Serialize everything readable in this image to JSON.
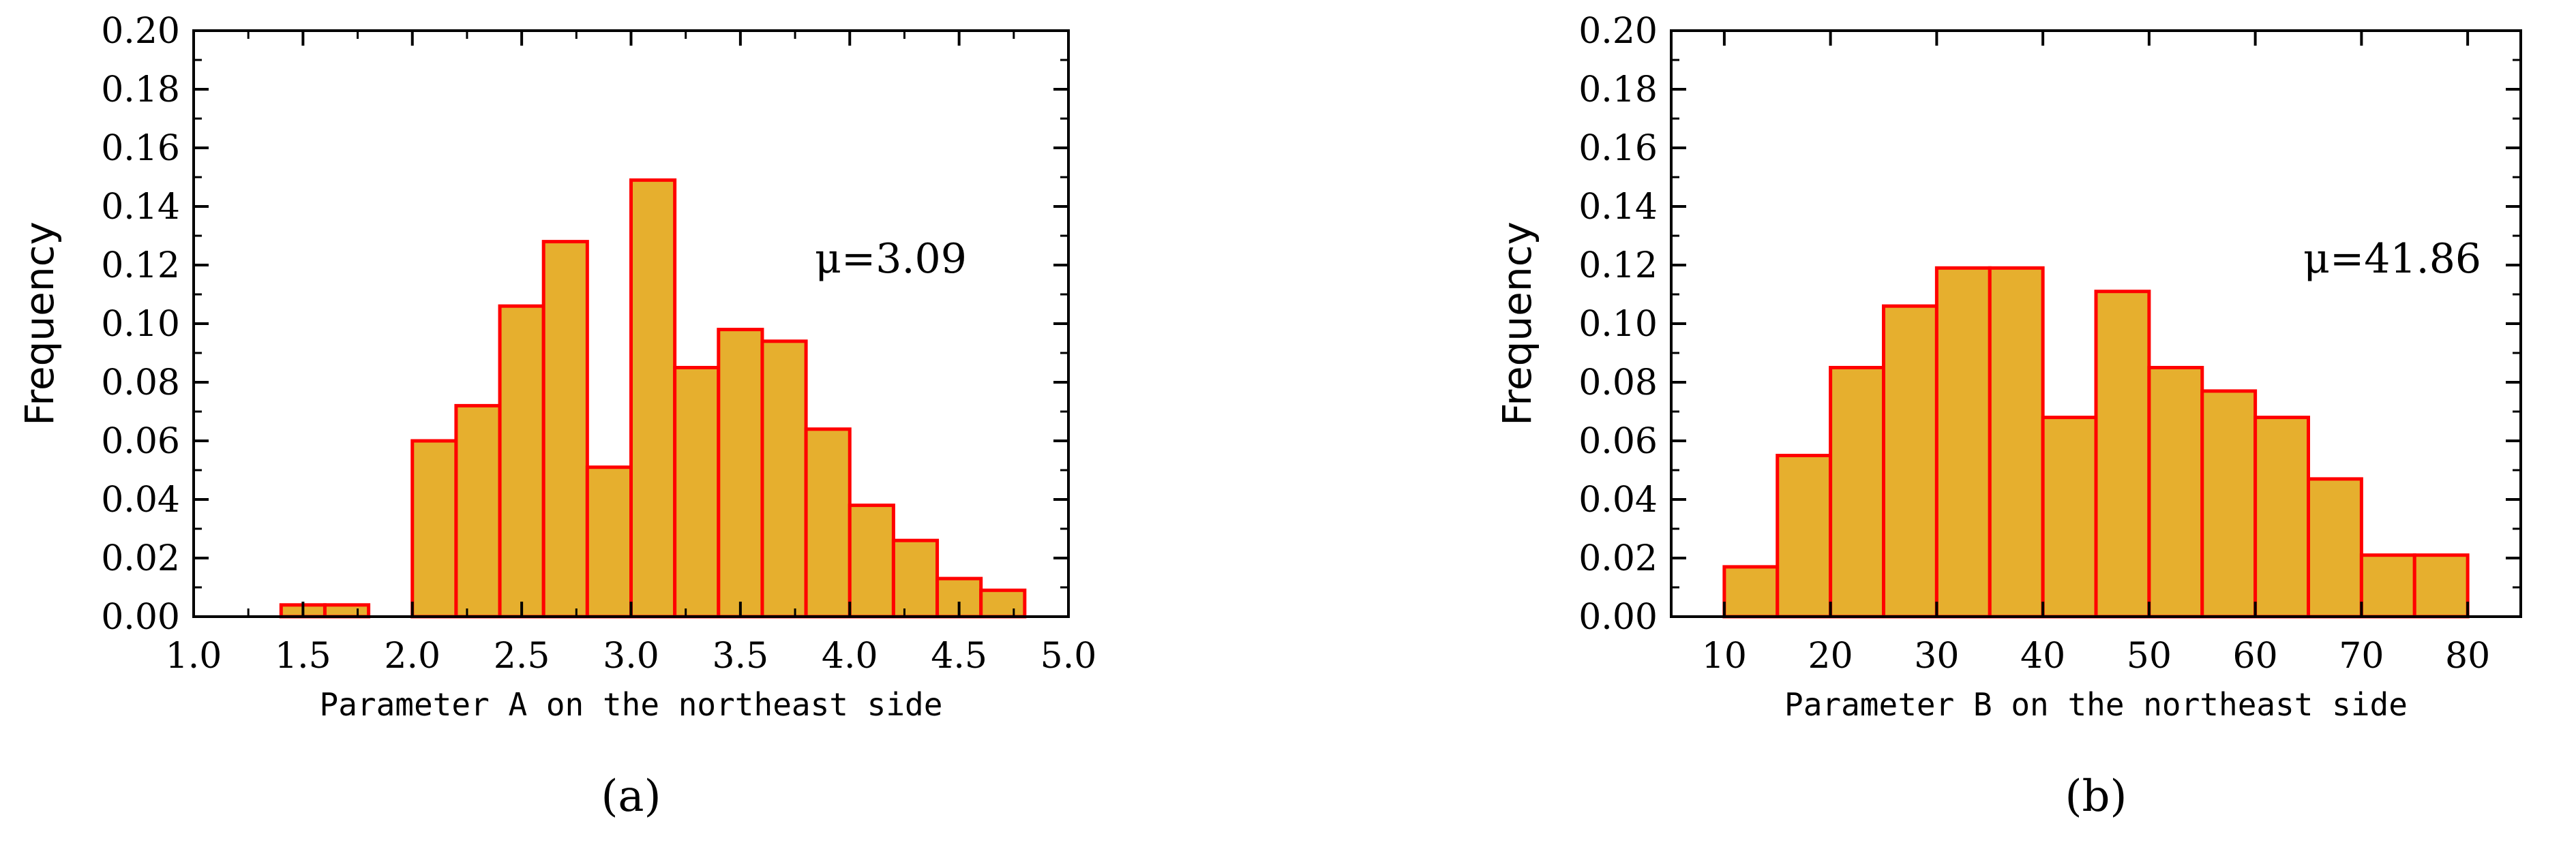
{
  "chart_data": [
    {
      "type": "bar",
      "panel_label": "(a)",
      "xlabel": "Parameter A on the northeast side",
      "ylabel": "Frequency",
      "annotation": "μ=3.09",
      "xlim": [
        1.0,
        5.0
      ],
      "ylim": [
        0.0,
        0.2
      ],
      "xticks": [
        "1.0",
        "1.5",
        "2.0",
        "2.5",
        "3.0",
        "3.5",
        "4.0",
        "4.5",
        "5.0"
      ],
      "yticks": [
        "0.00",
        "0.02",
        "0.04",
        "0.06",
        "0.08",
        "0.10",
        "0.12",
        "0.14",
        "0.16",
        "0.18",
        "0.20"
      ],
      "bin_width": 0.2,
      "bins": [
        {
          "x0": 1.4,
          "x1": 1.6,
          "value": 0.004
        },
        {
          "x0": 1.6,
          "x1": 1.8,
          "value": 0.004
        },
        {
          "x0": 2.0,
          "x1": 2.2,
          "value": 0.06
        },
        {
          "x0": 2.2,
          "x1": 2.4,
          "value": 0.072
        },
        {
          "x0": 2.4,
          "x1": 2.6,
          "value": 0.106
        },
        {
          "x0": 2.6,
          "x1": 2.8,
          "value": 0.128
        },
        {
          "x0": 2.8,
          "x1": 3.0,
          "value": 0.051
        },
        {
          "x0": 3.0,
          "x1": 3.2,
          "value": 0.149
        },
        {
          "x0": 3.2,
          "x1": 3.4,
          "value": 0.085
        },
        {
          "x0": 3.4,
          "x1": 3.6,
          "value": 0.098
        },
        {
          "x0": 3.6,
          "x1": 3.8,
          "value": 0.094
        },
        {
          "x0": 3.8,
          "x1": 4.0,
          "value": 0.064
        },
        {
          "x0": 4.0,
          "x1": 4.2,
          "value": 0.038
        },
        {
          "x0": 4.2,
          "x1": 4.4,
          "value": 0.026
        },
        {
          "x0": 4.4,
          "x1": 4.6,
          "value": 0.013
        },
        {
          "x0": 4.6,
          "x1": 4.8,
          "value": 0.009
        }
      ]
    },
    {
      "type": "bar",
      "panel_label": "(b)",
      "xlabel": "Parameter B on the northeast side",
      "ylabel": "Frequency",
      "annotation": "μ=41.86",
      "xlim": [
        5,
        85
      ],
      "ylim": [
        0.0,
        0.2
      ],
      "xticks": [
        "10",
        "20",
        "30",
        "40",
        "50",
        "60",
        "70",
        "80"
      ],
      "yticks": [
        "0.00",
        "0.02",
        "0.04",
        "0.06",
        "0.08",
        "0.10",
        "0.12",
        "0.14",
        "0.16",
        "0.18",
        "0.20"
      ],
      "bin_width": 5,
      "bins": [
        {
          "x0": 10,
          "x1": 15,
          "value": 0.017
        },
        {
          "x0": 15,
          "x1": 20,
          "value": 0.055
        },
        {
          "x0": 20,
          "x1": 25,
          "value": 0.085
        },
        {
          "x0": 25,
          "x1": 30,
          "value": 0.106
        },
        {
          "x0": 30,
          "x1": 35,
          "value": 0.119
        },
        {
          "x0": 35,
          "x1": 40,
          "value": 0.119
        },
        {
          "x0": 40,
          "x1": 45,
          "value": 0.068
        },
        {
          "x0": 45,
          "x1": 50,
          "value": 0.111
        },
        {
          "x0": 50,
          "x1": 55,
          "value": 0.085
        },
        {
          "x0": 55,
          "x1": 60,
          "value": 0.077
        },
        {
          "x0": 60,
          "x1": 65,
          "value": 0.068
        },
        {
          "x0": 65,
          "x1": 70,
          "value": 0.047
        },
        {
          "x0": 70,
          "x1": 75,
          "value": 0.021
        },
        {
          "x0": 75,
          "x1": 80,
          "value": 0.021
        }
      ]
    }
  ],
  "colors": {
    "bar_fill": "#E6AF2E",
    "bar_stroke": "#FF0000",
    "axis": "#000000"
  }
}
